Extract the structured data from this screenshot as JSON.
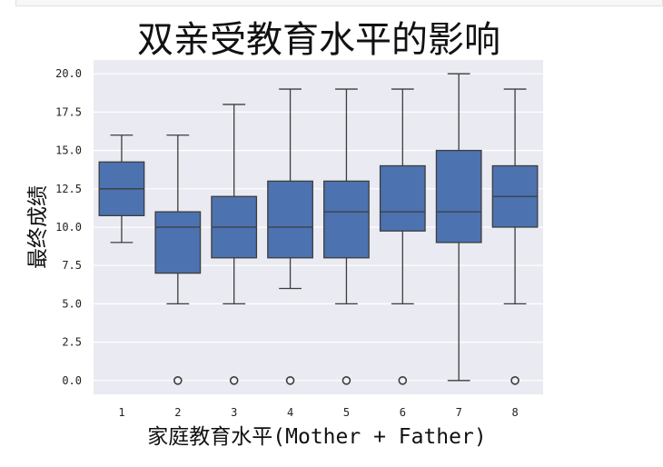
{
  "chart_data": {
    "type": "box",
    "title": "双亲受教育水平的影响",
    "xlabel": "家庭教育水平(Mother + Father)",
    "ylabel": "最终成绩",
    "ylim": [
      -0.9,
      20.9
    ],
    "yticks": [
      "0.0",
      "2.5",
      "5.0",
      "7.5",
      "10.0",
      "12.5",
      "15.0",
      "17.5",
      "20.0"
    ],
    "ytick_values": [
      0,
      2.5,
      5,
      7.5,
      10,
      12.5,
      15,
      17.5,
      20
    ],
    "categories": [
      "1",
      "2",
      "3",
      "4",
      "5",
      "6",
      "7",
      "8"
    ],
    "boxes": [
      {
        "category": "1",
        "whisker_low": 9,
        "q1": 10.75,
        "median": 12.5,
        "q3": 14.25,
        "whisker_high": 16,
        "outliers": []
      },
      {
        "category": "2",
        "whisker_low": 5,
        "q1": 7,
        "median": 10,
        "q3": 11,
        "whisker_high": 16,
        "outliers": [
          0
        ]
      },
      {
        "category": "3",
        "whisker_low": 5,
        "q1": 8,
        "median": 10,
        "q3": 12,
        "whisker_high": 18,
        "outliers": [
          0
        ]
      },
      {
        "category": "4",
        "whisker_low": 6,
        "q1": 8,
        "median": 10,
        "q3": 13,
        "whisker_high": 19,
        "outliers": [
          0
        ]
      },
      {
        "category": "5",
        "whisker_low": 5,
        "q1": 8,
        "median": 11,
        "q3": 13,
        "whisker_high": 19,
        "outliers": [
          0
        ]
      },
      {
        "category": "6",
        "whisker_low": 5,
        "q1": 9.75,
        "median": 11,
        "q3": 14,
        "whisker_high": 19,
        "outliers": [
          0
        ]
      },
      {
        "category": "7",
        "whisker_low": 0,
        "q1": 9,
        "median": 11,
        "q3": 15,
        "whisker_high": 20,
        "outliers": []
      },
      {
        "category": "8",
        "whisker_low": 5,
        "q1": 10,
        "median": 12,
        "q3": 14,
        "whisker_high": 19,
        "outliers": [
          0
        ]
      }
    ],
    "grid": true,
    "colors": {
      "box": "#4c72b0",
      "line": "#3d3d3d",
      "background": "#eaeaf2",
      "grid": "#ffffff"
    }
  }
}
